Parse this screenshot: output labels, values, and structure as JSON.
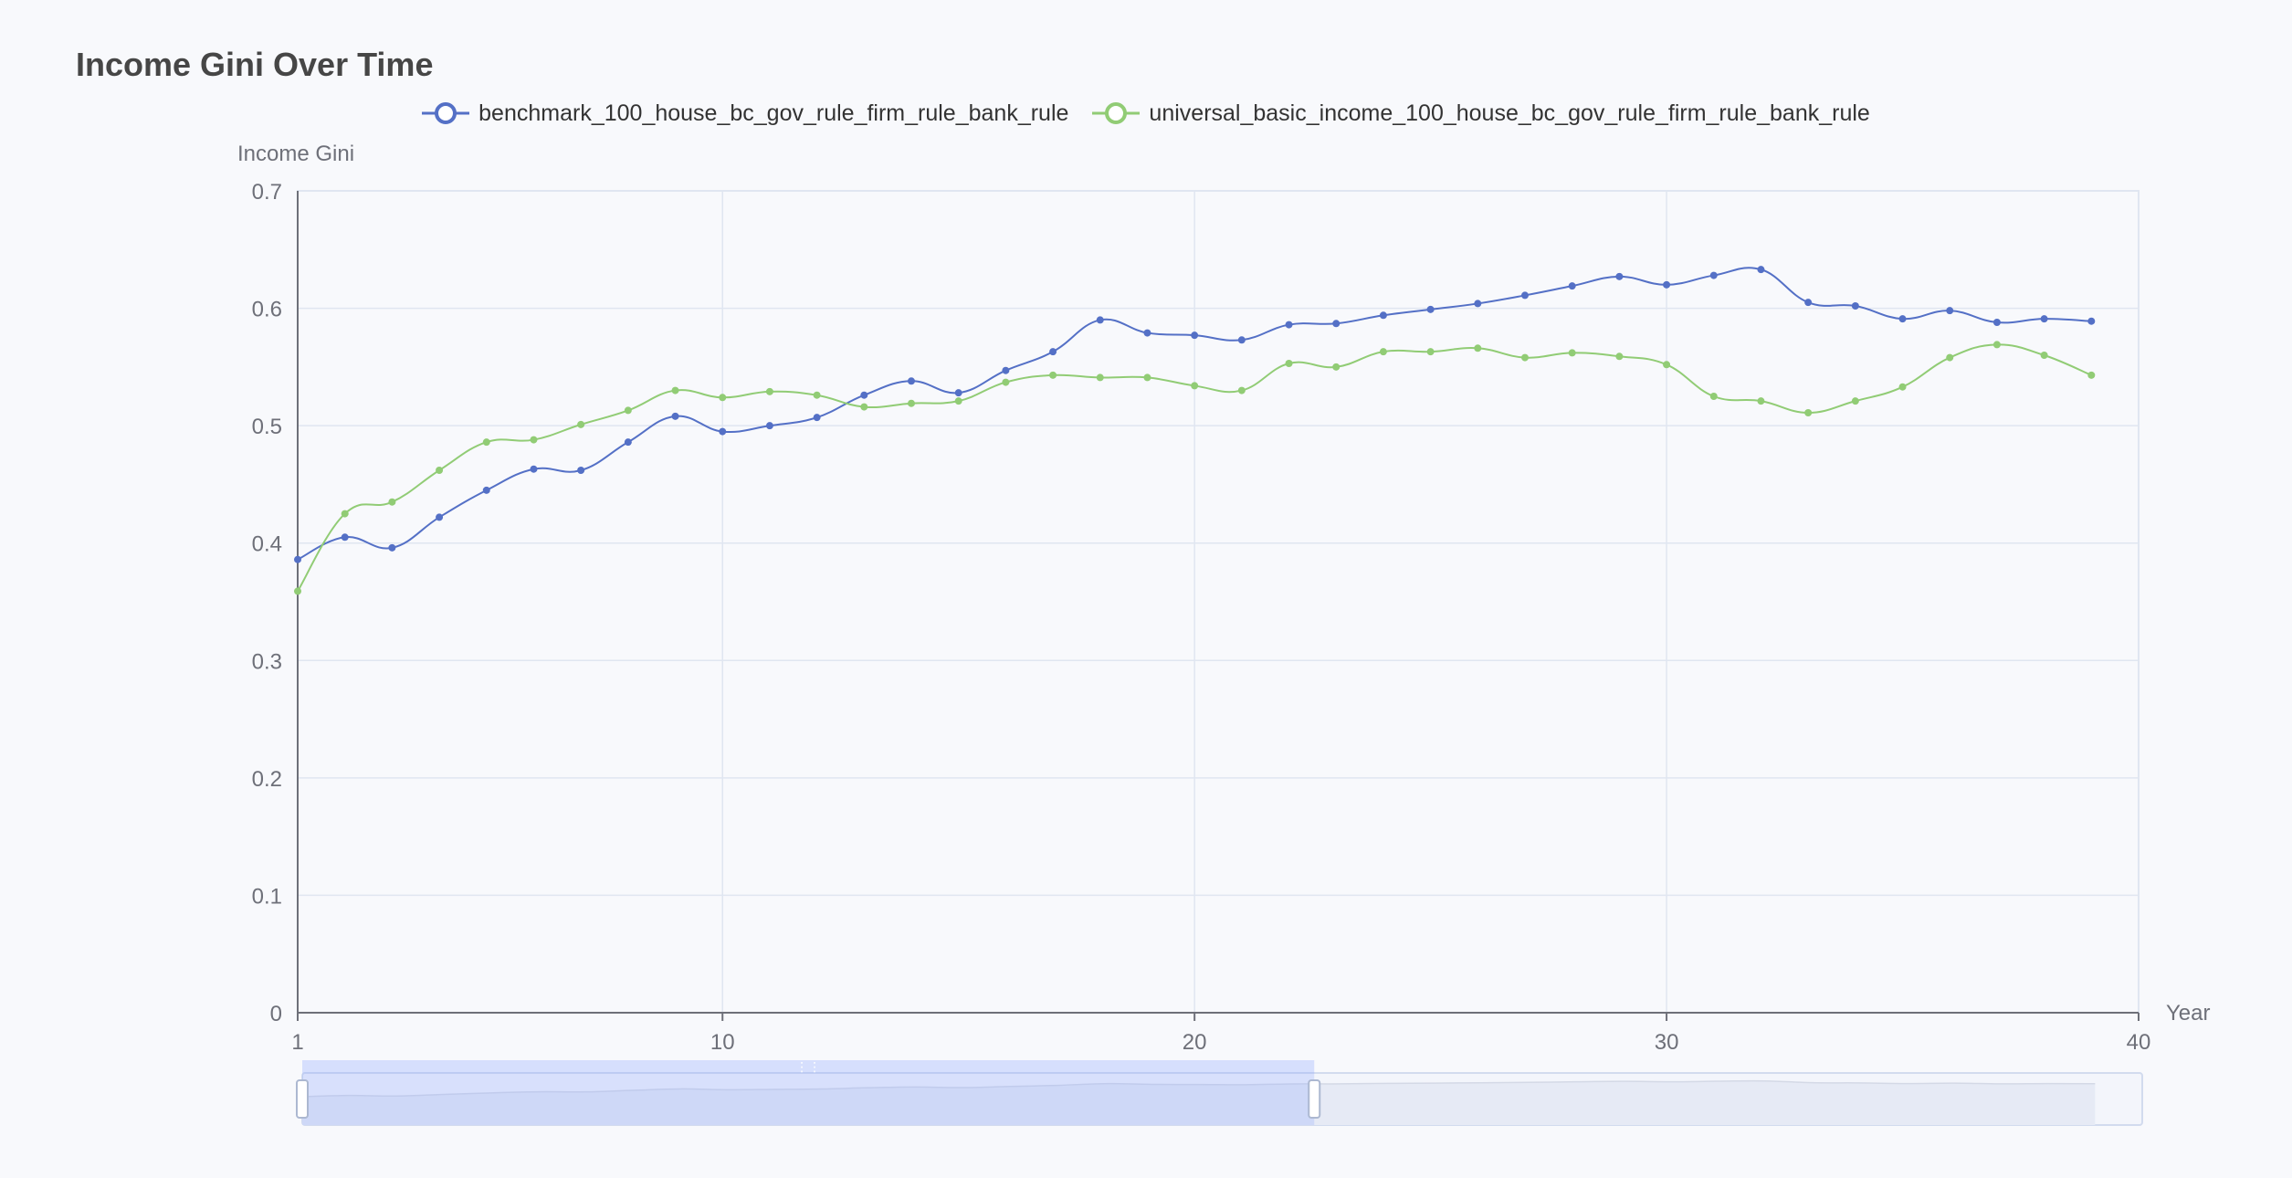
{
  "title": "Income Gini Over Time",
  "chart_data": {
    "type": "line",
    "title": "Income Gini Over Time",
    "xlabel": "Year",
    "ylabel": "Income Gini",
    "xlim": [
      1,
      40
    ],
    "ylim": [
      0,
      0.7
    ],
    "x_ticks": [
      1,
      10,
      20,
      30,
      40
    ],
    "y_ticks": [
      0,
      0.1,
      0.2,
      0.3,
      0.4,
      0.5,
      0.6,
      0.7
    ],
    "grid": true,
    "legend_position": "top-center",
    "x": [
      1,
      2,
      3,
      4,
      5,
      6,
      7,
      8,
      9,
      10,
      11,
      12,
      13,
      14,
      15,
      16,
      17,
      18,
      19,
      20,
      21,
      22,
      23,
      24,
      25,
      26,
      27,
      28,
      29,
      30,
      31,
      32,
      33,
      34,
      35,
      36,
      37,
      38,
      39
    ],
    "series": [
      {
        "name": "benchmark_100_house_bc_gov_rule_firm_rule_bank_rule",
        "color": "#5470c6",
        "values": [
          0.386,
          0.405,
          0.396,
          0.422,
          0.445,
          0.463,
          0.462,
          0.486,
          0.508,
          0.495,
          0.5,
          0.507,
          0.526,
          0.538,
          0.528,
          0.547,
          0.563,
          0.59,
          0.579,
          0.577,
          0.573,
          0.586,
          0.587,
          0.594,
          0.599,
          0.604,
          0.611,
          0.619,
          0.627,
          0.62,
          0.628,
          0.633,
          0.605,
          0.602,
          0.591,
          0.598,
          0.588,
          0.591,
          0.589
        ]
      },
      {
        "name": "universal_basic_income_100_house_bc_gov_rule_firm_rule_bank_rule",
        "color": "#91cc75",
        "values": [
          0.359,
          0.425,
          0.435,
          0.462,
          0.486,
          0.488,
          0.501,
          0.513,
          0.53,
          0.524,
          0.529,
          0.526,
          0.516,
          0.519,
          0.521,
          0.537,
          0.543,
          0.541,
          0.541,
          0.534,
          0.53,
          0.553,
          0.55,
          0.563,
          0.563,
          0.566,
          0.558,
          0.562,
          0.559,
          0.552,
          0.525,
          0.521,
          0.511,
          0.521,
          0.533,
          0.558,
          0.569,
          0.56,
          0.543
        ]
      }
    ],
    "data_zoom": {
      "start_fraction": 0.0,
      "end_fraction": 0.55
    }
  }
}
